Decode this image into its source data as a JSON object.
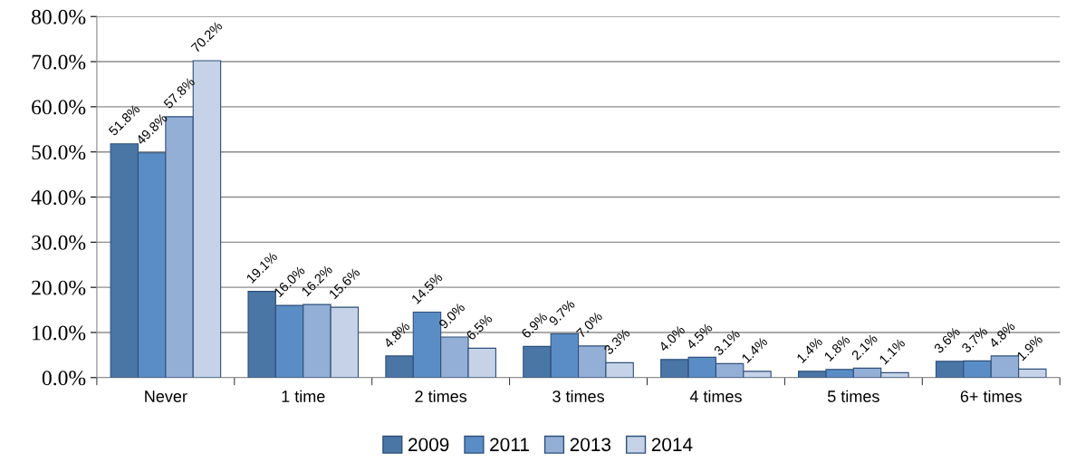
{
  "chart_data": {
    "type": "bar",
    "categories": [
      "Never",
      "1 time",
      "2 times",
      "3 times",
      "4 times",
      "5 times",
      "6+ times"
    ],
    "series": [
      {
        "name": "2009",
        "color": "#4a76a6",
        "values": [
          51.8,
          19.1,
          4.8,
          6.9,
          4.0,
          1.4,
          3.6
        ],
        "value_labels": [
          "51.8%",
          "19.1%",
          "4.8%",
          "6.9%",
          "4.0%",
          "1.4%",
          "3.6%"
        ]
      },
      {
        "name": "2011",
        "color": "#5a8dc6",
        "values": [
          49.8,
          16.0,
          14.5,
          9.7,
          4.5,
          1.8,
          3.7
        ],
        "value_labels": [
          "49.8%",
          "16.0%",
          "14.5%",
          "9.7%",
          "4.5%",
          "1.8%",
          "3.7%"
        ]
      },
      {
        "name": "2013",
        "color": "#93afd6",
        "values": [
          57.8,
          16.2,
          9.0,
          7.0,
          3.1,
          2.1,
          4.8
        ],
        "value_labels": [
          "57.8%",
          "16.2%",
          "9.0%",
          "7.0%",
          "3.1%",
          "2.1%",
          "4.8%"
        ]
      },
      {
        "name": "2014",
        "color": "#c6d2e7",
        "values": [
          70.2,
          15.6,
          6.5,
          3.3,
          1.4,
          1.1,
          1.9
        ],
        "value_labels": [
          "70.2%",
          "15.6%",
          "6.5%",
          "3.3%",
          "1.4%",
          "1.1%",
          "1.9%"
        ]
      }
    ],
    "ylim": [
      0,
      80
    ],
    "yticks": [
      {
        "value": 0,
        "label": "0.0%"
      },
      {
        "value": 10,
        "label": "10.0%"
      },
      {
        "value": 20,
        "label": "20.0%"
      },
      {
        "value": 30,
        "label": "30.0%"
      },
      {
        "value": 40,
        "label": "40.0%"
      },
      {
        "value": 50,
        "label": "50.0%"
      },
      {
        "value": 60,
        "label": "60.0%"
      },
      {
        "value": 70,
        "label": "70.0%"
      },
      {
        "value": 80,
        "label": "80.0%"
      }
    ],
    "grid": "y",
    "legend": "bottom"
  }
}
